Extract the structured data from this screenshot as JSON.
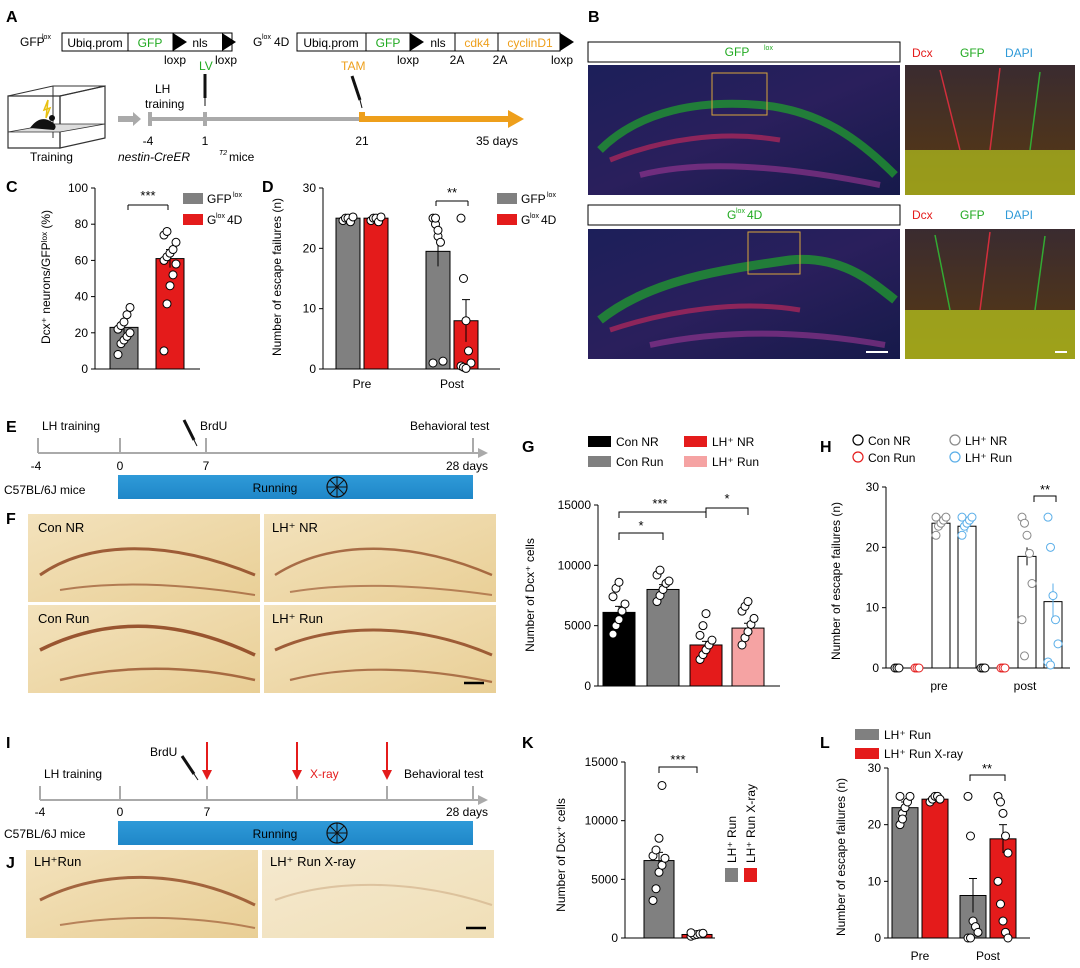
{
  "colors": {
    "gray": "#808080",
    "red": "#e41b1b",
    "orange": "#ee9f1b",
    "blue": "#2f9ad8",
    "green": "#22aa22",
    "pink": "#f5a3a3",
    "black": "#000000",
    "lightblue": "#5aaee8",
    "hollow_red": "#e41b1b"
  },
  "panels": {
    "A": {
      "letter": "A",
      "c1_prefix": "GFP",
      "c1_sup": "lox",
      "c1_boxes": [
        "Ubiq.prom",
        "GFP",
        "nls"
      ],
      "c1_sites": [
        "loxp",
        "loxp"
      ],
      "c2_prefix": "G",
      "c2_sup": "lox",
      "c2_suffix": "4D",
      "c2_boxes": [
        "Ubiq.prom",
        "GFP",
        "nls",
        "cdk4",
        "cyclinD1"
      ],
      "c2_sites": [
        "loxp",
        "2A",
        "2A",
        "loxp"
      ],
      "training": "Training",
      "lh": "LH",
      "lh2": "training",
      "lv": "LV",
      "tam": "TAM",
      "ticks": [
        "-4",
        "1",
        "21",
        "35 days"
      ],
      "mice": "nestin-CreER",
      "mice_sup": "T2",
      "mice_tail": " mice"
    },
    "B": {
      "letter": "B",
      "top_title": "GFP",
      "top_sup": "lox",
      "bot_title_pre": "G",
      "bot_sup": "lox",
      "bot_title_post": "4D",
      "ch": [
        "Dcx",
        "GFP",
        "DAPI"
      ]
    },
    "C": {
      "letter": "C",
      "ylabel": "Dcx⁺ neurons/GFPˡᵒˣ (%)",
      "yticks": [
        "0",
        "20",
        "40",
        "60",
        "80",
        "100"
      ],
      "legend": [
        {
          "base": "GFP",
          "sup": "lox"
        },
        {
          "base": "G",
          "sup": "lox",
          "tail": "4D"
        }
      ],
      "sig": "***"
    },
    "D": {
      "letter": "D",
      "ylabel": "Number of escape failures (n)",
      "yticks": [
        "0",
        "10",
        "20",
        "30"
      ],
      "xticks": [
        "Pre",
        "Post"
      ],
      "legend": [
        {
          "base": "GFP",
          "sup": "lox"
        },
        {
          "base": "G",
          "sup": "lox",
          "tail": "4D"
        }
      ],
      "sig": "**"
    },
    "E": {
      "letter": "E",
      "labels": [
        "LH training",
        "BrdU",
        "Behavioral test"
      ],
      "ticks": [
        "-4",
        "0",
        "7",
        "28 days"
      ],
      "mice": "C57BL/6J mice",
      "running": "Running"
    },
    "F": {
      "letter": "F",
      "tiles": [
        "Con NR",
        "LH⁺ NR",
        "Con Run",
        "LH⁺ Run"
      ]
    },
    "G": {
      "letter": "G",
      "ylabel": "Number of Dcx⁺ cells",
      "yticks": [
        "0",
        "5000",
        "10000",
        "15000"
      ],
      "legend": [
        "Con NR",
        "LH⁺ NR",
        "Con Run",
        "LH⁺ Run"
      ],
      "sigs": [
        "*",
        "***",
        "*"
      ]
    },
    "H": {
      "letter": "H",
      "ylabel": "Number of escape failures (n)",
      "yticks": [
        "0",
        "10",
        "20",
        "30"
      ],
      "xticks": [
        "pre",
        "post"
      ],
      "legend": [
        "Con NR",
        "LH⁺ NR",
        "Con Run",
        "LH⁺ Run"
      ],
      "sig": "**"
    },
    "I": {
      "letter": "I",
      "labels": [
        "LH training",
        "BrdU",
        "X-ray",
        "Behavioral test"
      ],
      "ticks": [
        "-4",
        "0",
        "7",
        "28 days"
      ],
      "mice": "C57BL/6J mice",
      "running": "Running"
    },
    "J": {
      "letter": "J",
      "tiles": [
        "LH⁺Run",
        "LH⁺ Run X-ray"
      ]
    },
    "K": {
      "letter": "K",
      "ylabel": "Number of Dcx⁺ cells",
      "yticks": [
        "0",
        "5000",
        "10000",
        "15000"
      ],
      "legend": [
        "LH⁺ Run",
        "LH⁺ Run X-ray"
      ],
      "sig": "***"
    },
    "L": {
      "letter": "L",
      "ylabel": "Number of escape failures (n)",
      "yticks": [
        "0",
        "10",
        "20",
        "30"
      ],
      "xticks": [
        "Pre",
        "Post"
      ],
      "legend": [
        "LH⁺ Run",
        "LH⁺ Run X-ray"
      ],
      "sig": "**"
    }
  },
  "chart_data": [
    {
      "id": "C",
      "type": "bar",
      "categories": [
        "GFPˡᵒˣ",
        "Gˡᵒˣ4D"
      ],
      "values": [
        23,
        61
      ],
      "errors": [
        3,
        5
      ],
      "ylim": [
        0,
        100
      ],
      "points": [
        [
          8,
          14,
          16,
          18,
          20,
          22,
          24,
          26,
          30,
          34
        ],
        [
          10,
          36,
          46,
          52,
          58,
          60,
          62,
          64,
          66,
          70,
          74,
          76
        ]
      ]
    },
    {
      "id": "D",
      "type": "bar",
      "categories": [
        "Pre",
        "Post"
      ],
      "series": [
        {
          "name": "GFPˡᵒˣ",
          "values": [
            25,
            19.5
          ],
          "errors": [
            0.3,
            2.5
          ]
        },
        {
          "name": "Gˡᵒˣ4D",
          "values": [
            25,
            8
          ],
          "errors": [
            0.3,
            3.5
          ]
        }
      ],
      "ylim": [
        0,
        30
      ]
    },
    {
      "id": "G",
      "type": "bar",
      "categories": [
        "Con NR",
        "Con Run",
        "LH⁺ NR",
        "LH⁺ Run"
      ],
      "values": [
        6100,
        8000,
        3400,
        4800
      ],
      "errors": [
        500,
        400,
        300,
        400
      ],
      "ylim": [
        0,
        15000
      ]
    },
    {
      "id": "H",
      "type": "bar",
      "categories": [
        "pre",
        "post"
      ],
      "series": [
        {
          "name": "Con NR",
          "values": [
            0,
            0
          ]
        },
        {
          "name": "Con Run",
          "values": [
            0,
            0
          ]
        },
        {
          "name": "LH⁺ NR",
          "values": [
            24,
            18.5
          ],
          "errors": [
            0.7,
            1.5
          ]
        },
        {
          "name": "LH⁺ Run",
          "values": [
            23.5,
            11
          ],
          "errors": [
            1,
            3
          ]
        }
      ],
      "ylim": [
        0,
        30
      ]
    },
    {
      "id": "K",
      "type": "bar",
      "categories": [
        "LH⁺ Run",
        "LH⁺ Run X-ray"
      ],
      "values": [
        6600,
        300
      ],
      "errors": [
        700,
        80
      ],
      "ylim": [
        0,
        15000
      ]
    },
    {
      "id": "L",
      "type": "bar",
      "categories": [
        "Pre",
        "Post"
      ],
      "series": [
        {
          "name": "LH⁺ Run",
          "values": [
            23,
            7.5
          ],
          "errors": [
            1,
            3
          ]
        },
        {
          "name": "LH⁺ Run X-ray",
          "values": [
            24.5,
            17.5
          ],
          "errors": [
            0.4,
            2.5
          ]
        }
      ],
      "ylim": [
        0,
        30
      ]
    }
  ]
}
